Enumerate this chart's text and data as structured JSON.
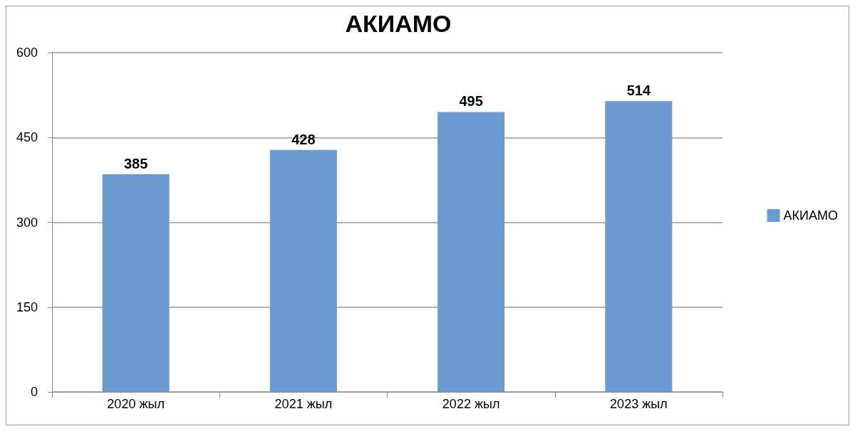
{
  "chart_data": {
    "type": "bar",
    "title": "АКИАМО",
    "categories": [
      "2020 жыл",
      "2021 жыл",
      "2022 жыл",
      "2023 жыл"
    ],
    "series": [
      {
        "name": "АКИАМО",
        "color": "#6b9bd1",
        "values": [
          385,
          428,
          495,
          514
        ]
      }
    ],
    "ylim": [
      0,
      600
    ],
    "yticks": [
      0,
      150,
      300,
      450,
      600
    ],
    "grid": "y",
    "legend": "right",
    "data_labels": true
  }
}
